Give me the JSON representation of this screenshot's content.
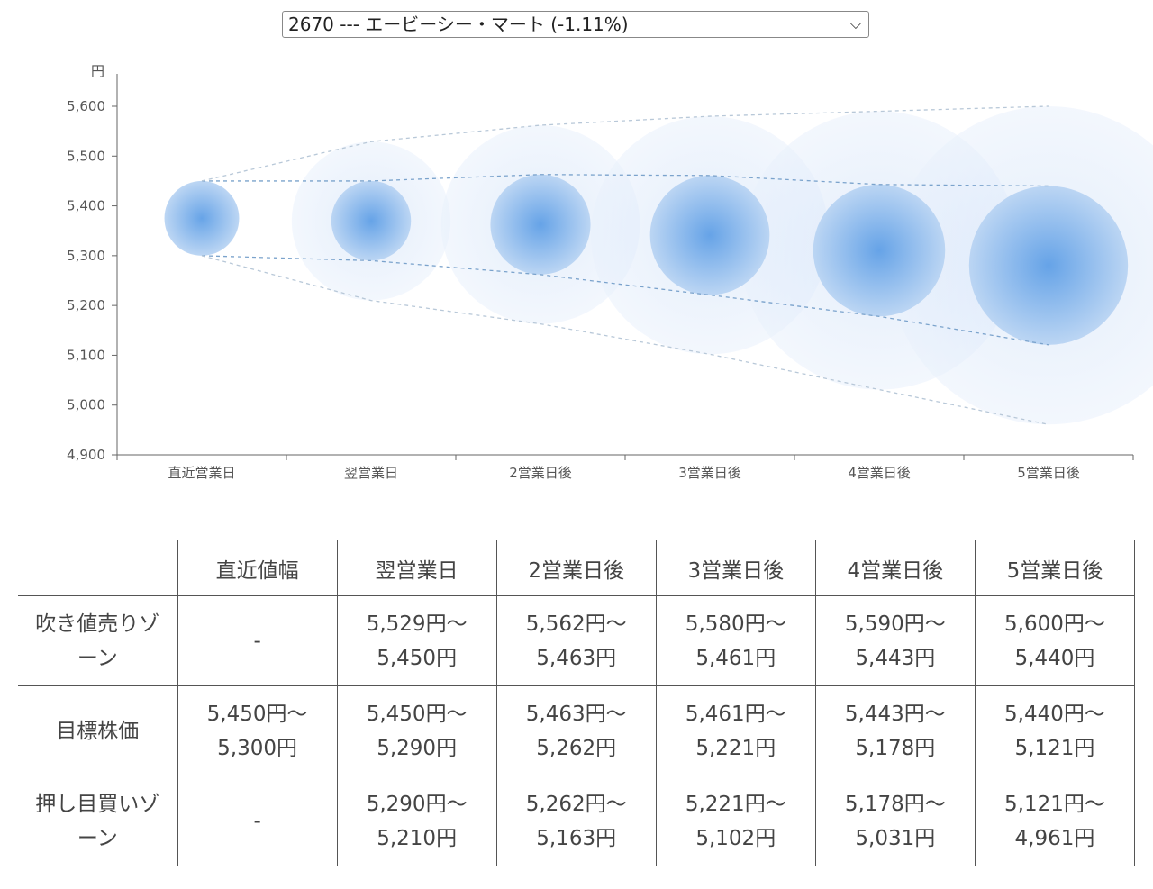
{
  "selector": {
    "value": "2670 --- エービーシー・マート (-1.11%)"
  },
  "chart_data": {
    "type": "scatter",
    "unit_label": "円",
    "ylim": [
      4900,
      5600
    ],
    "yticks": [
      "5,600",
      "5,500",
      "5,400",
      "5,300",
      "5,200",
      "5,100",
      "5,000",
      "4,900"
    ],
    "ytick_values": [
      5600,
      5500,
      5400,
      5300,
      5200,
      5100,
      5000,
      4900
    ],
    "categories": [
      "直近営業日",
      "翌営業日",
      "2営業日後",
      "3営業日後",
      "4営業日後",
      "5営業日後"
    ],
    "target_high": [
      5450,
      5450,
      5463,
      5461,
      5443,
      5440
    ],
    "target_low": [
      5300,
      5290,
      5262,
      5221,
      5178,
      5121
    ],
    "outer_high": [
      5450,
      5529,
      5562,
      5580,
      5590,
      5600
    ],
    "outer_low": [
      5300,
      5210,
      5163,
      5102,
      5031,
      4961
    ],
    "grid": false,
    "colors": {
      "inner": "#6fa8e8",
      "outer": "#dbe8fa",
      "band_inner": "#7ba3cc",
      "band_outer": "#b8c8d8"
    }
  },
  "table": {
    "headers": [
      "",
      "直近値幅",
      "翌営業日",
      "2営業日後",
      "3営業日後",
      "4営業日後",
      "5営業日後"
    ],
    "rows": [
      {
        "label_lines": [
          "吹き値売りゾ",
          "ーン"
        ],
        "cells": [
          [
            "-"
          ],
          [
            "5,529円〜",
            "5,450円"
          ],
          [
            "5,562円〜",
            "5,463円"
          ],
          [
            "5,580円〜",
            "5,461円"
          ],
          [
            "5,590円〜",
            "5,443円"
          ],
          [
            "5,600円〜",
            "5,440円"
          ]
        ]
      },
      {
        "label_lines": [
          "目標株価"
        ],
        "cells": [
          [
            "5,450円〜",
            "5,300円"
          ],
          [
            "5,450円〜",
            "5,290円"
          ],
          [
            "5,463円〜",
            "5,262円"
          ],
          [
            "5,461円〜",
            "5,221円"
          ],
          [
            "5,443円〜",
            "5,178円"
          ],
          [
            "5,440円〜",
            "5,121円"
          ]
        ]
      },
      {
        "label_lines": [
          "押し目買いゾ",
          "ーン"
        ],
        "cells": [
          [
            "-"
          ],
          [
            "5,290円〜",
            "5,210円"
          ],
          [
            "5,262円〜",
            "5,163円"
          ],
          [
            "5,221円〜",
            "5,102円"
          ],
          [
            "5,178円〜",
            "5,031円"
          ],
          [
            "5,121円〜",
            "4,961円"
          ]
        ]
      }
    ]
  }
}
